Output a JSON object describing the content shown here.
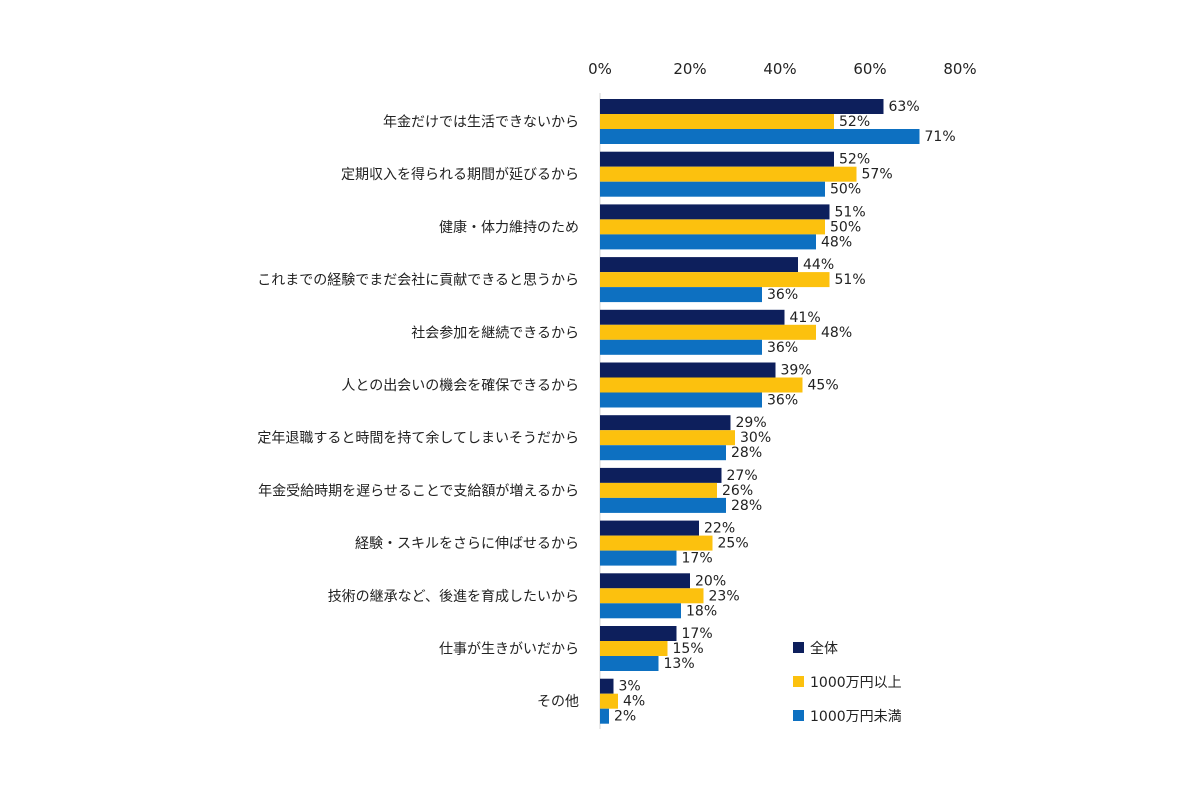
{
  "chart_data": {
    "type": "bar",
    "orientation": "horizontal",
    "title": "",
    "xlabel": "",
    "ylabel": "",
    "xlim": [
      0,
      80
    ],
    "x_ticks": [
      "0%",
      "20%",
      "40%",
      "60%",
      "80%"
    ],
    "x_tick_values": [
      0,
      20,
      40,
      60,
      80
    ],
    "axis_position": "top",
    "grid": false,
    "legend_position": "bottom-right",
    "categories": [
      "年金だけでは生活できないから",
      "定期収入を得られる期間が延びるから",
      "健康・体力維持のため",
      "これまでの経験でまだ会社に貢献できると思うから",
      "社会参加を継続できるから",
      "人との出会いの機会を確保できるから",
      "定年退職すると時間を持て余してしまいそうだから",
      "年金受給時期を遅らせることで支給額が増えるから",
      "経験・スキルをさらに伸ばせるから",
      "技術の継承など、後進を育成したいから",
      "仕事が生きがいだから",
      "その他"
    ],
    "series": [
      {
        "name": "全体",
        "color": "#0d1f5c",
        "values": [
          63,
          52,
          51,
          44,
          41,
          39,
          29,
          27,
          22,
          20,
          17,
          3
        ]
      },
      {
        "name": "1000万円以上",
        "color": "#fcc10e",
        "values": [
          52,
          57,
          50,
          51,
          48,
          45,
          30,
          26,
          25,
          23,
          15,
          4
        ]
      },
      {
        "name": "1000万円未満",
        "color": "#0d70c1",
        "values": [
          71,
          50,
          48,
          36,
          36,
          36,
          28,
          28,
          17,
          18,
          13,
          2
        ]
      }
    ],
    "value_suffix": "%"
  }
}
